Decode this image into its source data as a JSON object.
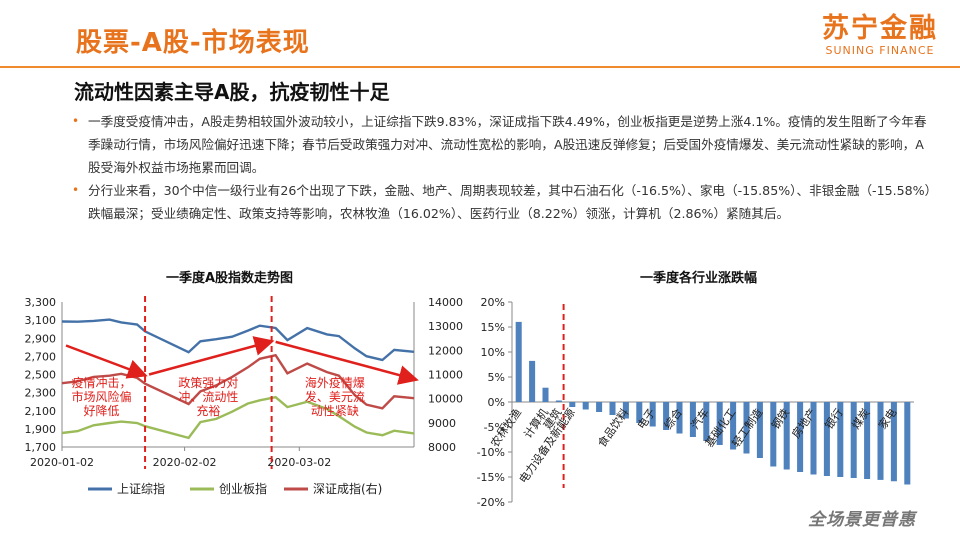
{
  "header": {
    "title": "股票-A股-市场表现",
    "logo_cn": "苏宁金融",
    "logo_en": "SUNING FINANCE"
  },
  "subtitle": "流动性因素主导A股，抗疫韧性十足",
  "bullets": [
    "一季度受疫情冲击，A股走势相较国外波动较小，上证综指下跌9.83%，深证成指下跌4.49%，创业板指更是逆势上涨4.1%。疫情的发生阻断了今年春季躁动行情，市场风险偏好迅速下降；春节后受政策强力对冲、流动性宽松的影响，A股迅速反弹修复；后受国外疫情爆发、美元流动性紧缺的影响，A股受海外权益市场拖累而回调。",
    "分行业来看，30个中信一级行业有26个出现了下跌，金融、地产、周期表现较差，其中石油石化（-16.5%）、家电（-15.85%）、非银金融（-15.58%）跌幅最深；受业绩确定性、政策支持等影响，农林牧渔（16.02%）、医药行业（8.22%）领涨，计算机（2.86%）紧随其后。"
  ],
  "footer_brand": "全场景更普惠",
  "chart_data": [
    {
      "type": "line",
      "title": "一季度A股指数走势图",
      "x": [
        "2020-01-02",
        "2020-01-06",
        "2020-01-10",
        "2020-01-14",
        "2020-01-17",
        "2020-01-21",
        "2020-01-23",
        "2020-02-03",
        "2020-02-06",
        "2020-02-10",
        "2020-02-14",
        "2020-02-18",
        "2020-02-21",
        "2020-02-25",
        "2020-02-28",
        "2020-03-04",
        "2020-03-09",
        "2020-03-12",
        "2020-03-16",
        "2020-03-19",
        "2020-03-23",
        "2020-03-26",
        "2020-03-31"
      ],
      "x_tick_labels": [
        "2020-01-02",
        "2020-02-02",
        "2020-03-02"
      ],
      "ylim_left": [
        1700,
        3300
      ],
      "yticks_left": [
        "1,700",
        "1,900",
        "2,100",
        "2,300",
        "2,500",
        "2,700",
        "2,900",
        "3,100",
        "3,300"
      ],
      "ylim_right": [
        8000,
        14000
      ],
      "yticks_right": [
        "8000",
        "9000",
        "10000",
        "11000",
        "12000",
        "13000",
        "14000"
      ],
      "series": [
        {
          "name": "上证综指",
          "axis": "left",
          "color": "#4472a8",
          "values": [
            3085,
            3083,
            3092,
            3106,
            3075,
            3052,
            2976,
            2746,
            2866,
            2890,
            2917,
            2984,
            3039,
            3013,
            2880,
            3012,
            2943,
            2924,
            2789,
            2702,
            2660,
            2772,
            2750
          ]
        },
        {
          "name": "创业板指",
          "axis": "left",
          "color": "#9bbb59",
          "values": [
            1855,
            1875,
            1940,
            1965,
            1980,
            1965,
            1930,
            1800,
            1975,
            2010,
            2090,
            2180,
            2215,
            2250,
            2140,
            2200,
            2120,
            2040,
            1925,
            1860,
            1830,
            1880,
            1850
          ]
        },
        {
          "name": "深证成指(右)",
          "axis": "right",
          "color": "#be4b48",
          "values": [
            10640,
            10720,
            10900,
            10950,
            11030,
            10860,
            10620,
            9780,
            10300,
            10550,
            10900,
            11300,
            11650,
            11800,
            11050,
            11450,
            11100,
            10950,
            10150,
            9750,
            9600,
            10100,
            10020
          ]
        }
      ],
      "event_lines": [
        "2020-01-23",
        "2020-02-24"
      ],
      "annotations": [
        "疫情冲击，市场风险偏好降低",
        "政策强力对冲、流动性充裕",
        "海外疫情爆发、美元流动性紧缺"
      ],
      "legend_position": "bottom"
    },
    {
      "type": "bar",
      "title": "一季度各行业涨跌幅",
      "ylim": [
        -20,
        20
      ],
      "yticks": [
        "20%",
        "15%",
        "10%",
        "5%",
        "0%",
        "-5%",
        "-10%",
        "-15%",
        "-20%"
      ],
      "color": "#4f81bd",
      "values": [
        16.02,
        8.22,
        2.86,
        0.3,
        -1.0,
        -1.5,
        -2.0,
        -2.6,
        -3.3,
        -4.2,
        -4.9,
        -5.6,
        -6.3,
        -7.0,
        -7.8,
        -8.6,
        -9.5,
        -10.3,
        -11.2,
        -12.9,
        -13.5,
        -14.0,
        -14.5,
        -14.8,
        -15.0,
        -15.2,
        -15.4,
        -15.58,
        -15.85,
        -16.5
      ],
      "labeled_bars": [
        {
          "index": 0,
          "label": "农林牧渔"
        },
        {
          "index": 2,
          "label": "计算机"
        },
        {
          "index": 3,
          "label": "建筑"
        },
        {
          "index": 4,
          "label": "电力设备及新能源"
        },
        {
          "index": 8,
          "label": "食品饮料"
        },
        {
          "index": 10,
          "label": "电子"
        },
        {
          "index": 12,
          "label": "综合"
        },
        {
          "index": 14,
          "label": "汽车"
        },
        {
          "index": 16,
          "label": "基础化工"
        },
        {
          "index": 18,
          "label": "轻工制造"
        },
        {
          "index": 20,
          "label": "钢铁"
        },
        {
          "index": 22,
          "label": "房地产"
        },
        {
          "index": 24,
          "label": "银行"
        },
        {
          "index": 26,
          "label": "煤炭"
        },
        {
          "index": 28,
          "label": "家电"
        }
      ],
      "divider_after_index": 3
    }
  ]
}
